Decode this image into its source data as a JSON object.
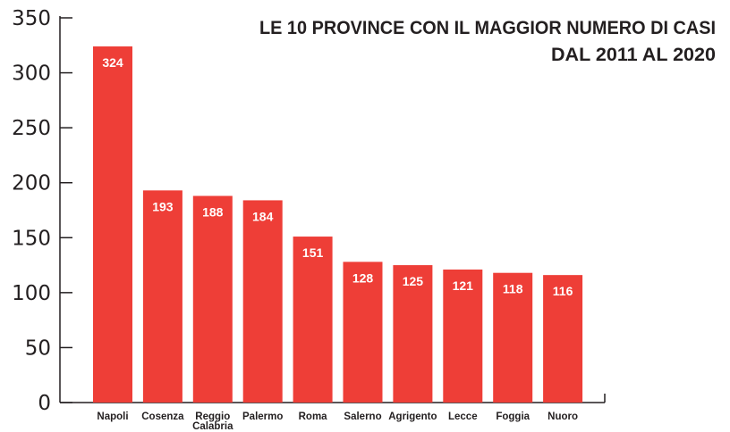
{
  "chart_data": {
    "type": "bar",
    "title_lines": [
      "LE 10 PROVINCE CON IL MAGGIOR NUMERO DI CASI",
      "DAL 2011 AL 2020"
    ],
    "categories": [
      "Napoli",
      "Cosenza",
      "Reggio Calabria",
      "Palermo",
      "Roma",
      "Salerno",
      "Agrigento",
      "Lecce",
      "Foggia",
      "Nuoro"
    ],
    "category_lines": [
      [
        "Napoli"
      ],
      [
        "Cosenza"
      ],
      [
        "Reggio",
        "Calabria"
      ],
      [
        "Palermo"
      ],
      [
        "Roma"
      ],
      [
        "Salerno"
      ],
      [
        "Agrigento"
      ],
      [
        "Lecce"
      ],
      [
        "Foggia"
      ],
      [
        "Nuoro"
      ]
    ],
    "values": [
      324,
      193,
      188,
      184,
      151,
      128,
      125,
      121,
      118,
      116
    ],
    "xlabel": "",
    "ylabel": "",
    "ylim": [
      0,
      350
    ],
    "yticks": [
      0,
      50,
      100,
      150,
      200,
      250,
      300,
      350
    ],
    "grid": false,
    "bar_color": "#ee3e37",
    "axis_color": "#231f20"
  }
}
